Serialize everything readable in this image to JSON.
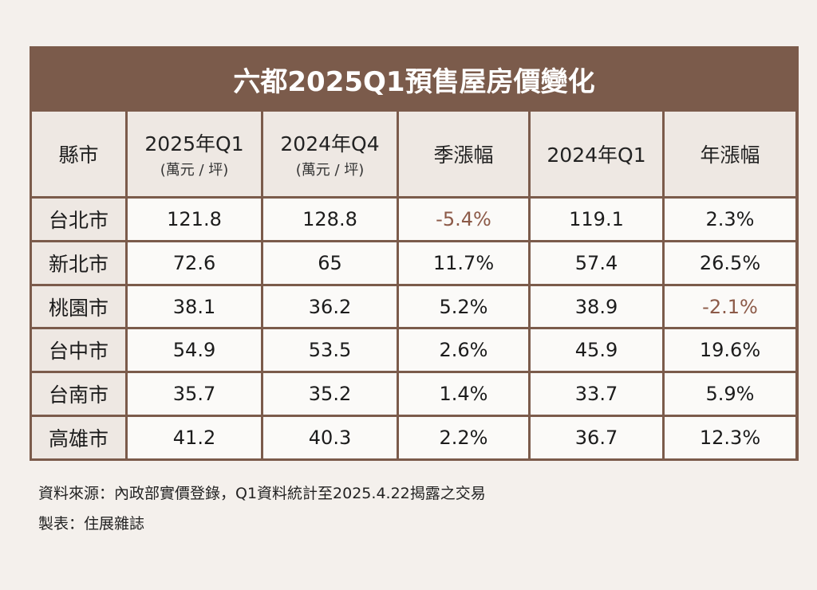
{
  "chart_data": {
    "type": "table",
    "title": "六都2025Q1預售屋房價變化",
    "columns": [
      {
        "label": "縣市",
        "sub": ""
      },
      {
        "label": "2025年Q1",
        "sub": "(萬元 / 坪)"
      },
      {
        "label": "2024年Q4",
        "sub": "(萬元 / 坪)"
      },
      {
        "label": "季漲幅",
        "sub": ""
      },
      {
        "label": "2024年Q1",
        "sub": ""
      },
      {
        "label": "年漲幅",
        "sub": ""
      }
    ],
    "rows": [
      [
        "台北市",
        "121.8",
        "128.8",
        "-5.4%",
        "119.1",
        "2.3%"
      ],
      [
        "新北市",
        "72.6",
        "65",
        "11.7%",
        "57.4",
        "26.5%"
      ],
      [
        "桃園市",
        "38.1",
        "36.2",
        "5.2%",
        "38.9",
        "-2.1%"
      ],
      [
        "台中市",
        "54.9",
        "53.5",
        "2.6%",
        "45.9",
        "19.6%"
      ],
      [
        "台南市",
        "35.7",
        "35.2",
        "1.4%",
        "33.7",
        "5.9%"
      ],
      [
        "高雄市",
        "41.2",
        "40.3",
        "2.2%",
        "36.7",
        "12.3%"
      ]
    ],
    "negative_color": "#8c5a48"
  },
  "footer": {
    "source": "資料來源：內政部實價登錄，Q1資料統計至2025.4.22揭露之交易",
    "credit": "製表：住展雜誌"
  }
}
